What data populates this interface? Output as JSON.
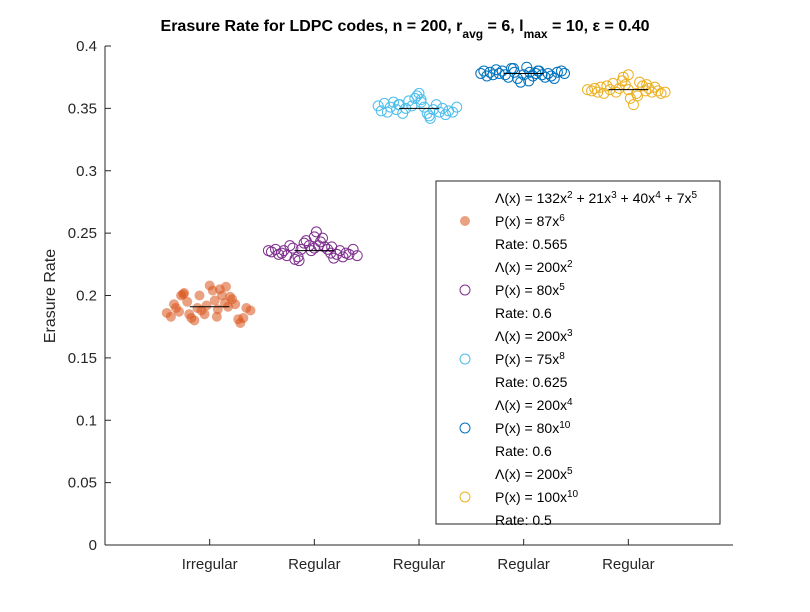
{
  "chart_data": {
    "type": "scatter",
    "title": {
      "prefix": "Erasure Rate for LDPC codes, n = 200, r",
      "r_sub": "avg",
      "mid1": " = 6, l",
      "l_sub": "max",
      "mid2": " = 10, ε = 0.40"
    },
    "xlabel": "",
    "ylabel": "Erasure Rate",
    "ylim": [
      0,
      0.4
    ],
    "yticks": [
      "0",
      "0.05",
      "0.1",
      "0.15",
      "0.2",
      "0.25",
      "0.3",
      "0.35",
      "0.4"
    ],
    "yticks_values": [
      0,
      0.05,
      0.1,
      0.15,
      0.2,
      0.25,
      0.3,
      0.35,
      0.4
    ],
    "categories": [
      "Irregular",
      "Regular",
      "Regular",
      "Regular",
      "Regular"
    ],
    "legend_position": "lower-right",
    "series": [
      {
        "lambda_parts": [
          [
            "Λ(x) = 132x",
            "2"
          ],
          [
            " + 21x",
            "3"
          ],
          [
            " + 40x",
            "4"
          ],
          [
            " + 7x",
            "5"
          ]
        ],
        "p_parts": [
          [
            "P(x) = 87x",
            "6"
          ]
        ],
        "rate": "Rate: 0.565",
        "color": "#D95319",
        "filled": true,
        "mean": 0.191,
        "offsets": [
          -0.42,
          -0.38,
          -0.35,
          -0.33,
          -0.3,
          -0.28,
          -0.25,
          -0.22,
          -0.2,
          -0.18,
          -0.15,
          -0.12,
          -0.1,
          -0.08,
          -0.05,
          -0.03,
          0.0,
          0.03,
          0.05,
          0.08,
          0.1,
          0.12,
          0.15,
          0.18,
          0.2,
          0.22,
          0.25,
          0.28,
          0.3,
          0.33,
          0.36,
          0.4,
          -0.26,
          0.07,
          0.16
        ],
        "values": [
          0.186,
          0.183,
          0.193,
          0.19,
          0.187,
          0.2,
          0.202,
          0.195,
          0.185,
          0.182,
          0.18,
          0.19,
          0.2,
          0.188,
          0.185,
          0.192,
          0.208,
          0.204,
          0.196,
          0.189,
          0.205,
          0.2,
          0.194,
          0.191,
          0.199,
          0.197,
          0.193,
          0.181,
          0.178,
          0.182,
          0.19,
          0.188,
          0.201,
          0.183,
          0.207
        ]
      },
      {
        "lambda_parts": [
          [
            "Λ(x) = 200x",
            "2"
          ]
        ],
        "p_parts": [
          [
            "P(x) = 80x",
            "5"
          ]
        ],
        "rate": "Rate: 0.6",
        "color": "#7E2F8E",
        "filled": false,
        "mean": 0.236,
        "offsets": [
          -0.45,
          -0.42,
          -0.38,
          -0.35,
          -0.32,
          -0.3,
          -0.27,
          -0.24,
          -0.21,
          -0.19,
          -0.16,
          -0.13,
          -0.1,
          -0.08,
          -0.05,
          -0.03,
          0.0,
          0.02,
          0.04,
          0.06,
          0.08,
          0.1,
          0.13,
          0.16,
          0.19,
          0.22,
          0.25,
          0.28,
          0.31,
          0.34,
          0.38,
          0.42,
          -0.15,
          0.0,
          0.17
        ],
        "values": [
          0.236,
          0.235,
          0.237,
          0.233,
          0.234,
          0.236,
          0.232,
          0.24,
          0.238,
          0.229,
          0.231,
          0.237,
          0.242,
          0.244,
          0.24,
          0.236,
          0.238,
          0.251,
          0.24,
          0.243,
          0.246,
          0.239,
          0.237,
          0.234,
          0.23,
          0.233,
          0.236,
          0.231,
          0.234,
          0.233,
          0.237,
          0.232,
          0.228,
          0.247,
          0.239
        ]
      },
      {
        "lambda_parts": [
          [
            "Λ(x) = 200x",
            "3"
          ]
        ],
        "p_parts": [
          [
            "P(x) = 75x",
            "8"
          ]
        ],
        "rate": "Rate: 0.625",
        "color": "#4DBEEE",
        "filled": false,
        "mean": 0.35,
        "offsets": [
          -0.4,
          -0.37,
          -0.34,
          -0.31,
          -0.28,
          -0.25,
          -0.22,
          -0.19,
          -0.16,
          -0.13,
          -0.1,
          -0.07,
          -0.04,
          -0.02,
          0.0,
          0.02,
          0.05,
          0.08,
          0.11,
          0.14,
          0.17,
          0.2,
          0.23,
          0.26,
          0.29,
          0.33,
          0.37,
          -0.2,
          0.02,
          0.1
        ],
        "values": [
          0.352,
          0.348,
          0.354,
          0.347,
          0.351,
          0.355,
          0.349,
          0.353,
          0.346,
          0.35,
          0.356,
          0.352,
          0.358,
          0.36,
          0.362,
          0.355,
          0.351,
          0.346,
          0.342,
          0.349,
          0.353,
          0.347,
          0.35,
          0.345,
          0.348,
          0.347,
          0.351,
          0.353,
          0.357,
          0.344
        ]
      },
      {
        "lambda_parts": [
          [
            "Λ(x) = 200x",
            "4"
          ]
        ],
        "p_parts": [
          [
            "P(x) = 80x",
            "10"
          ]
        ],
        "rate": "Rate: 0.6",
        "color": "#0072BD",
        "filled": false,
        "mean": 0.378,
        "offsets": [
          -0.42,
          -0.39,
          -0.36,
          -0.33,
          -0.3,
          -0.27,
          -0.24,
          -0.21,
          -0.18,
          -0.15,
          -0.12,
          -0.09,
          -0.06,
          -0.03,
          0.0,
          0.03,
          0.06,
          0.09,
          0.12,
          0.15,
          0.18,
          0.21,
          0.24,
          0.27,
          0.3,
          0.33,
          0.37,
          0.4,
          -0.1,
          0.05,
          0.14
        ],
        "values": [
          0.378,
          0.38,
          0.376,
          0.379,
          0.377,
          0.381,
          0.378,
          0.38,
          0.377,
          0.375,
          0.382,
          0.379,
          0.374,
          0.371,
          0.377,
          0.383,
          0.379,
          0.376,
          0.378,
          0.38,
          0.377,
          0.375,
          0.378,
          0.376,
          0.374,
          0.379,
          0.38,
          0.378,
          0.382,
          0.372,
          0.38
        ]
      },
      {
        "lambda_parts": [
          [
            "Λ(x) = 200x",
            "5"
          ]
        ],
        "p_parts": [
          [
            "P(x) = 100x",
            "10"
          ]
        ],
        "rate": "Rate: 0.5",
        "color": "#EDB120",
        "filled": false,
        "mean": 0.365,
        "offsets": [
          -0.4,
          -0.36,
          -0.33,
          -0.3,
          -0.27,
          -0.24,
          -0.21,
          -0.18,
          -0.15,
          -0.12,
          -0.09,
          -0.06,
          -0.03,
          0.0,
          0.02,
          0.05,
          0.08,
          0.11,
          0.14,
          0.17,
          0.2,
          0.23,
          0.26,
          0.29,
          0.32,
          0.36,
          -0.05,
          0.0,
          0.09,
          0.18
        ],
        "values": [
          0.365,
          0.364,
          0.366,
          0.363,
          0.367,
          0.362,
          0.368,
          0.365,
          0.37,
          0.363,
          0.366,
          0.372,
          0.369,
          0.365,
          0.358,
          0.353,
          0.362,
          0.371,
          0.368,
          0.364,
          0.366,
          0.363,
          0.367,
          0.364,
          0.362,
          0.363,
          0.375,
          0.377,
          0.36,
          0.369
        ]
      }
    ]
  }
}
